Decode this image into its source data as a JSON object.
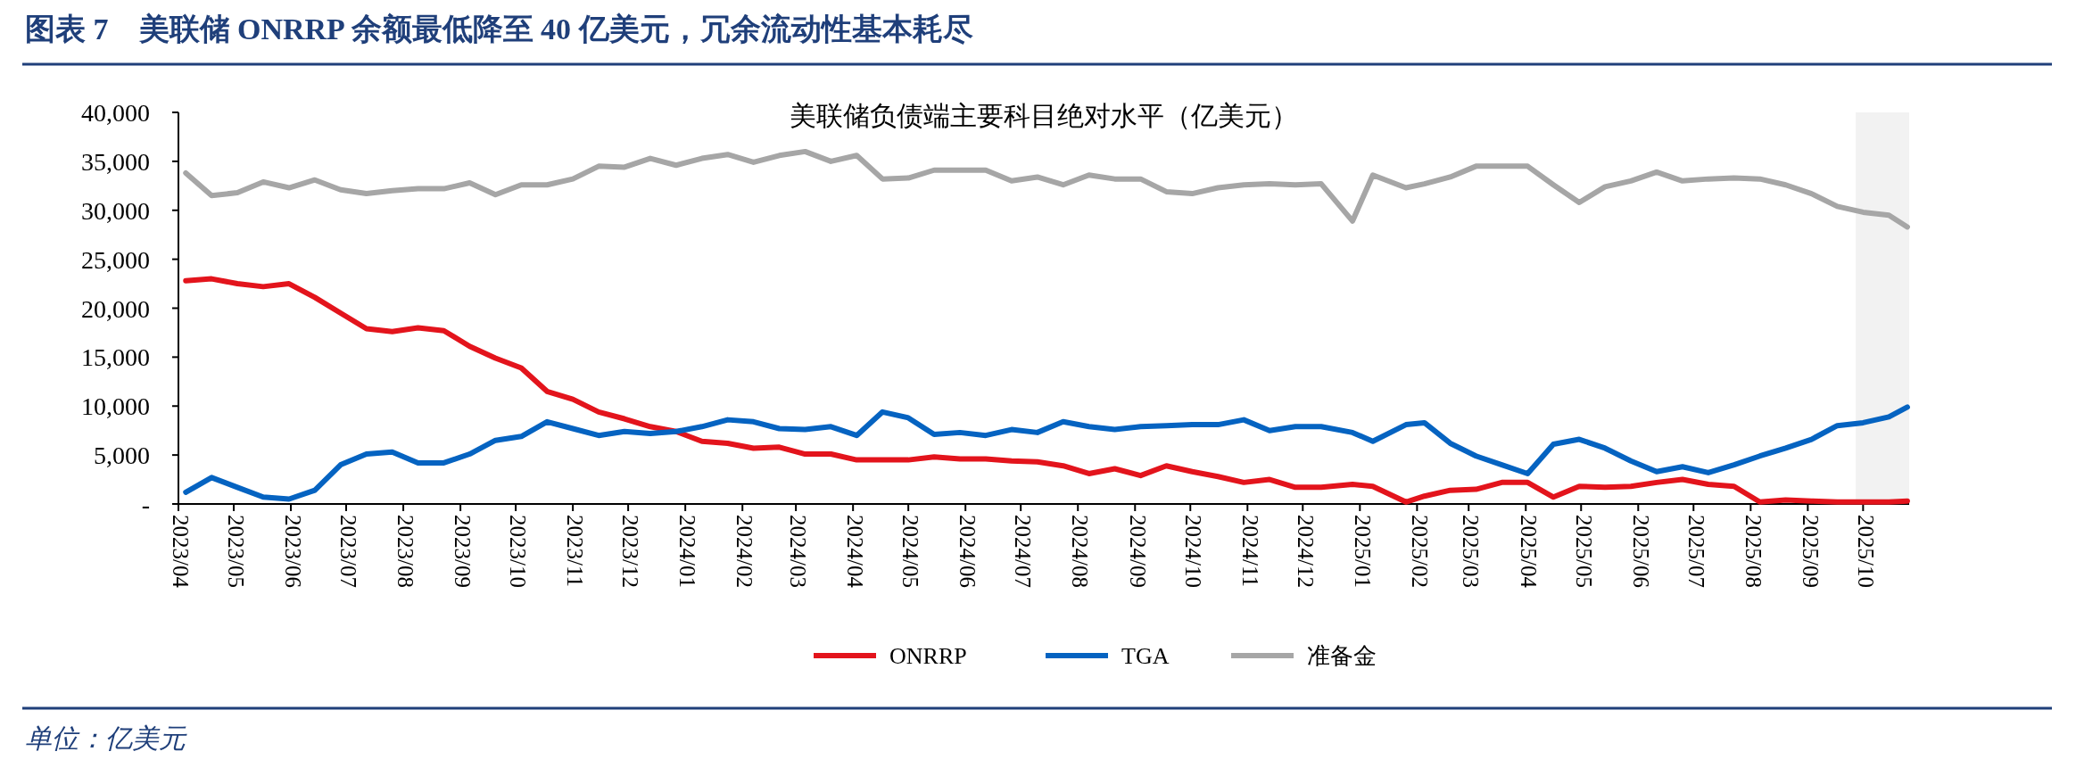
{
  "chart_data": {
    "type": "line",
    "title": "图表 7　美联储 ONRRP 余额最低降至 40 亿美元，冗余流动性基本耗尽",
    "subtitle": "美联储负债端主要科目绝对水平（亿美元）",
    "annotations": [
      "单位：亿美元"
    ],
    "x": [
      "2023-04-05",
      "2023-04-19",
      "2023-05-03",
      "2023-05-17",
      "2023-05-31",
      "2023-06-14",
      "2023-06-28",
      "2023-07-12",
      "2023-07-26",
      "2023-08-09",
      "2023-08-23",
      "2023-09-06",
      "2023-09-20",
      "2023-10-04",
      "2023-10-18",
      "2023-11-01",
      "2023-11-15",
      "2023-11-29",
      "2023-12-13",
      "2023-12-27",
      "2024-01-10",
      "2024-01-24",
      "2024-02-07",
      "2024-02-21",
      "2024-03-06",
      "2024-03-20",
      "2024-04-03",
      "2024-04-17",
      "2024-05-01",
      "2024-05-15",
      "2024-05-29",
      "2024-06-12",
      "2024-06-26",
      "2024-07-10",
      "2024-07-24",
      "2024-08-07",
      "2024-08-21",
      "2024-09-04",
      "2024-09-18",
      "2024-10-02",
      "2024-10-16",
      "2024-10-30",
      "2024-11-13",
      "2024-11-27",
      "2024-12-11",
      "2024-12-28",
      "2025-01-08",
      "2025-01-26",
      "2025-02-05",
      "2025-02-19",
      "2025-03-05",
      "2025-03-19",
      "2025-04-02",
      "2025-04-16",
      "2025-04-30",
      "2025-05-14",
      "2025-05-28",
      "2025-06-11",
      "2025-06-25",
      "2025-07-09",
      "2025-07-23",
      "2025-08-06",
      "2025-08-20",
      "2025-09-03",
      "2025-09-17",
      "2025-10-01",
      "2025-10-15",
      "2025-10-25"
    ],
    "series": [
      {
        "name": "ONRRP",
        "color": "#e3141c",
        "values": [
          22800,
          23000,
          22500,
          22200,
          22500,
          21100,
          19500,
          17900,
          17600,
          18000,
          17700,
          16100,
          14900,
          13900,
          11500,
          10700,
          9400,
          8700,
          7900,
          7400,
          6400,
          6200,
          5700,
          5800,
          5100,
          5100,
          4500,
          4500,
          4500,
          4800,
          4600,
          4600,
          4400,
          4300,
          3900,
          3100,
          3600,
          2900,
          3900,
          3300,
          2800,
          2200,
          2500,
          1700,
          1700,
          2000,
          1800,
          200,
          800,
          1400,
          1500,
          2200,
          2200,
          700,
          1800,
          1700,
          1800,
          2200,
          2500,
          2000,
          1800,
          200,
          400,
          300,
          200,
          200,
          200,
          300
        ]
      },
      {
        "name": "TGA",
        "color": "#0563c1",
        "values": [
          1200,
          2700,
          1700,
          700,
          500,
          1400,
          4000,
          5100,
          5300,
          4200,
          4200,
          5100,
          6500,
          6900,
          8400,
          7700,
          7000,
          7400,
          7200,
          7400,
          7900,
          8600,
          8400,
          7700,
          7600,
          7900,
          7000,
          9400,
          8800,
          7100,
          7300,
          7000,
          7600,
          7300,
          8400,
          7900,
          7600,
          7900,
          8000,
          8100,
          8100,
          8600,
          7500,
          7900,
          7900,
          7300,
          6400,
          8100,
          8300,
          6200,
          4900,
          4000,
          3100,
          6100,
          6600,
          5700,
          4400,
          3300,
          3800,
          3200,
          4000,
          4900,
          5700,
          6600,
          8000,
          8300,
          8900,
          9900
        ]
      },
      {
        "name": "准备金",
        "color": "#a6a6a6",
        "values": [
          33800,
          31500,
          31800,
          32900,
          32300,
          33100,
          32100,
          31700,
          32000,
          32200,
          32200,
          32800,
          31600,
          32600,
          32600,
          33200,
          34500,
          34400,
          35300,
          34600,
          35300,
          35700,
          34900,
          35600,
          36000,
          35000,
          35600,
          33200,
          33300,
          34100,
          34100,
          34100,
          33000,
          33400,
          32600,
          33600,
          33200,
          33200,
          31900,
          31700,
          32300,
          32600,
          32700,
          32600,
          32700,
          28900,
          33600,
          32300,
          32700,
          33400,
          34500,
          34500,
          34500,
          32600,
          30800,
          32400,
          33000,
          33900,
          33000,
          33200,
          33300,
          33200,
          32600,
          31700,
          30400,
          29800,
          29500,
          28300
        ]
      }
    ],
    "xlim": [
      "2023-04-01",
      "2025-10-26"
    ],
    "xticks": [
      {
        "value": "2023-04-01",
        "label": "2023/04"
      },
      {
        "value": "2023-05-01",
        "label": "2023/05"
      },
      {
        "value": "2023-06-01",
        "label": "2023/06"
      },
      {
        "value": "2023-07-01",
        "label": "2023/07"
      },
      {
        "value": "2023-08-01",
        "label": "2023/08"
      },
      {
        "value": "2023-09-01",
        "label": "2023/09"
      },
      {
        "value": "2023-10-01",
        "label": "2023/10"
      },
      {
        "value": "2023-11-01",
        "label": "2023/11"
      },
      {
        "value": "2023-12-01",
        "label": "2023/12"
      },
      {
        "value": "2024-01-01",
        "label": "2024/01"
      },
      {
        "value": "2024-02-01",
        "label": "2024/02"
      },
      {
        "value": "2024-03-01",
        "label": "2024/03"
      },
      {
        "value": "2024-04-01",
        "label": "2024/04"
      },
      {
        "value": "2024-05-01",
        "label": "2024/05"
      },
      {
        "value": "2024-06-01",
        "label": "2024/06"
      },
      {
        "value": "2024-07-01",
        "label": "2024/07"
      },
      {
        "value": "2024-08-01",
        "label": "2024/08"
      },
      {
        "value": "2024-09-01",
        "label": "2024/09"
      },
      {
        "value": "2024-10-01",
        "label": "2024/10"
      },
      {
        "value": "2024-11-01",
        "label": "2024/11"
      },
      {
        "value": "2024-12-01",
        "label": "2024/12"
      },
      {
        "value": "2025-01-01",
        "label": "2025/01"
      },
      {
        "value": "2025-02-01",
        "label": "2025/02"
      },
      {
        "value": "2025-03-01",
        "label": "2025/03"
      },
      {
        "value": "2025-04-01",
        "label": "2025/04"
      },
      {
        "value": "2025-05-01",
        "label": "2025/05"
      },
      {
        "value": "2025-06-01",
        "label": "2025/06"
      },
      {
        "value": "2025-07-01",
        "label": "2025/07"
      },
      {
        "value": "2025-08-01",
        "label": "2025/08"
      },
      {
        "value": "2025-09-01",
        "label": "2025/09"
      },
      {
        "value": "2025-10-01",
        "label": "2025/10"
      }
    ],
    "ylim": [
      0,
      40000
    ],
    "yticks": [
      {
        "value": 0,
        "label": "-"
      },
      {
        "value": 5000,
        "label": "5,000"
      },
      {
        "value": 10000,
        "label": "10,000"
      },
      {
        "value": 15000,
        "label": "15,000"
      },
      {
        "value": 20000,
        "label": "20,000"
      },
      {
        "value": 25000,
        "label": "25,000"
      },
      {
        "value": 30000,
        "label": "30,000"
      },
      {
        "value": 35000,
        "label": "35,000"
      },
      {
        "value": 40000,
        "label": "40,000"
      }
    ],
    "bands": [
      {
        "axis": "x",
        "from": "2025-09-27",
        "to": "2025-10-26",
        "label": null,
        "color": "#f2f2f2"
      }
    ],
    "grid": false,
    "legend": "bottom",
    "marker": "none",
    "line_style": "solid"
  }
}
